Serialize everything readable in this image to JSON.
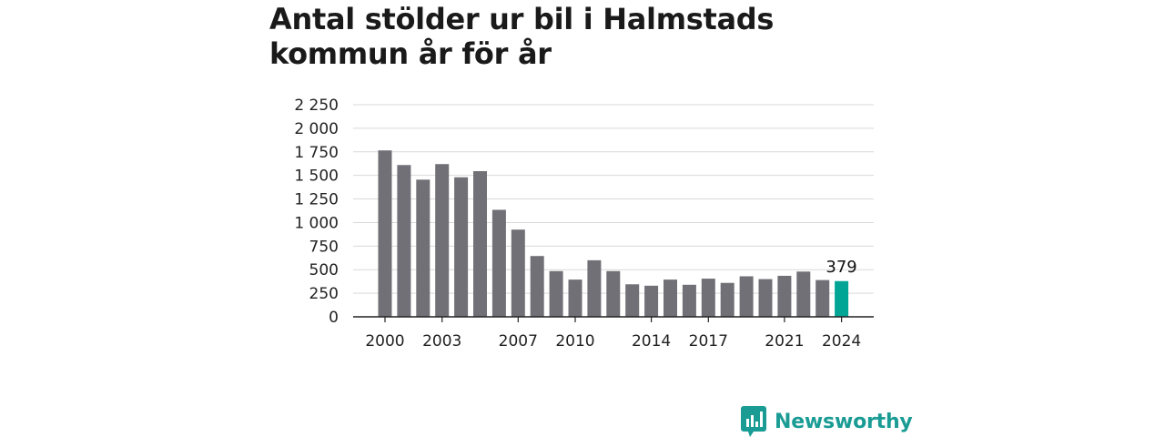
{
  "title": "Antal stölder ur bil i Halmstads kommun år för år",
  "brand": {
    "name": "Newsworthy",
    "icon": "newsworthy-logo-icon"
  },
  "colors": {
    "bar": "#717076",
    "highlight": "#00a596",
    "grid": "#d9d9d9",
    "axis": "#222222",
    "brand": "#1a9c95"
  },
  "chart_data": {
    "type": "bar",
    "title": "Antal stölder ur bil i Halmstads kommun år för år",
    "xlabel": "",
    "ylabel": "",
    "ylim": [
      0,
      2250
    ],
    "grid": true,
    "y_ticks": [
      "0",
      "250",
      "500",
      "750",
      "1 000",
      "1 250",
      "1 500",
      "1 750",
      "2 000",
      "2 250"
    ],
    "x_ticks": [
      "2000",
      "2003",
      "2007",
      "2010",
      "2014",
      "2017",
      "2021",
      "2024"
    ],
    "categories": [
      2000,
      2001,
      2002,
      2003,
      2004,
      2005,
      2006,
      2007,
      2008,
      2009,
      2010,
      2011,
      2012,
      2013,
      2014,
      2015,
      2016,
      2017,
      2018,
      2019,
      2020,
      2021,
      2022,
      2023,
      2024
    ],
    "values": [
      1765,
      1610,
      1455,
      1620,
      1480,
      1545,
      1135,
      925,
      645,
      485,
      395,
      600,
      485,
      345,
      330,
      395,
      340,
      405,
      360,
      430,
      400,
      435,
      480,
      390,
      379
    ],
    "highlight_index": 24,
    "highlight_label": "379"
  }
}
